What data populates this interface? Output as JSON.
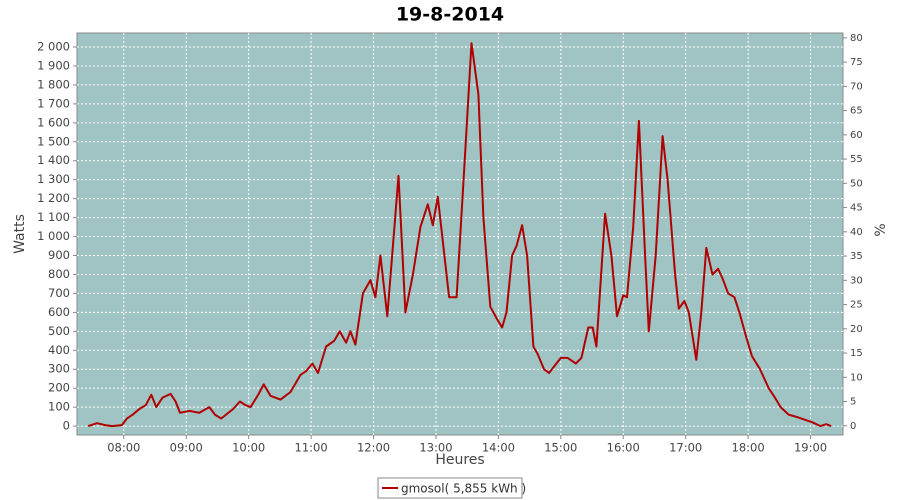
{
  "chart_data": {
    "type": "line",
    "title": "19-8-2014",
    "xlabel": "Heures",
    "ylabel": "Watts",
    "y2label": "%",
    "xlim": [
      7.25,
      19.52
    ],
    "xticks": [
      {
        "value": 8,
        "label": "08:00"
      },
      {
        "value": 9,
        "label": "09:00"
      },
      {
        "value": 10,
        "label": "10:00"
      },
      {
        "value": 11,
        "label": "11:00"
      },
      {
        "value": 12,
        "label": "12:00"
      },
      {
        "value": 13,
        "label": "13:00"
      },
      {
        "value": 14,
        "label": "14:00"
      },
      {
        "value": 15,
        "label": "15:00"
      },
      {
        "value": 16,
        "label": "16:00"
      },
      {
        "value": 17,
        "label": "17:00"
      },
      {
        "value": 18,
        "label": "18:00"
      },
      {
        "value": 19,
        "label": "19:00"
      }
    ],
    "ylim": [
      -47,
      2074
    ],
    "yticks": [
      0,
      100,
      200,
      300,
      400,
      500,
      600,
      700,
      800,
      900,
      {
        "value": 1000,
        "label": "1 000"
      },
      {
        "value": 1100,
        "label": "1 100"
      },
      {
        "value": 1200,
        "label": "1 200"
      },
      {
        "value": 1300,
        "label": "1 300"
      },
      {
        "value": 1400,
        "label": "1 400"
      },
      {
        "value": 1500,
        "label": "1 500"
      },
      {
        "value": 1600,
        "label": "1 600"
      },
      {
        "value": 1700,
        "label": "1 700"
      },
      {
        "value": 1800,
        "label": "1 800"
      },
      {
        "value": 1900,
        "label": "1 900"
      },
      {
        "value": 2000,
        "label": "2 000"
      }
    ],
    "y2lim": [
      -1.9,
      81
    ],
    "y2ticks": [
      0,
      5,
      10,
      15,
      20,
      25,
      30,
      35,
      40,
      45,
      50,
      55,
      60,
      65,
      70,
      75,
      80
    ],
    "grid": true,
    "plot_background": "#a0c4c4",
    "legend": "bottom",
    "x": [
      7.43,
      7.57,
      7.7,
      7.81,
      7.97,
      8.05,
      8.14,
      8.25,
      8.35,
      8.44,
      8.52,
      8.62,
      8.75,
      8.83,
      8.9,
      9.05,
      9.21,
      9.37,
      9.46,
      9.56,
      9.75,
      9.86,
      9.95,
      10.03,
      10.16,
      10.24,
      10.35,
      10.51,
      10.67,
      10.83,
      10.92,
      11.02,
      11.11,
      11.24,
      11.37,
      11.46,
      11.56,
      11.63,
      11.71,
      11.83,
      11.95,
      12.03,
      12.11,
      12.22,
      12.4,
      12.51,
      12.63,
      12.75,
      12.87,
      12.95,
      13.03,
      13.21,
      13.33,
      13.46,
      13.57,
      13.68,
      13.76,
      13.87,
      13.97,
      14.06,
      14.13,
      14.22,
      14.29,
      14.38,
      14.46,
      14.56,
      14.63,
      14.73,
      14.81,
      15.0,
      15.11,
      15.24,
      15.33,
      15.44,
      15.51,
      15.57,
      15.71,
      15.81,
      15.9,
      16.0,
      16.06,
      16.16,
      16.25,
      16.35,
      16.41,
      16.52,
      16.63,
      16.71,
      16.83,
      16.89,
      16.98,
      17.05,
      17.17,
      17.25,
      17.33,
      17.43,
      17.52,
      17.59,
      17.68,
      17.78,
      17.86,
      17.97,
      18.06,
      18.19,
      18.33,
      18.43,
      18.52,
      18.65,
      18.76,
      19.03,
      19.16,
      19.25,
      19.33
    ],
    "series": [
      {
        "name": "gmosol( 5,855 kWh )",
        "color": "#b00000",
        "values": [
          0,
          15,
          5,
          0,
          5,
          40,
          60,
          90,
          110,
          165,
          100,
          150,
          170,
          130,
          70,
          80,
          70,
          100,
          60,
          40,
          90,
          130,
          110,
          100,
          170,
          220,
          160,
          140,
          180,
          270,
          290,
          330,
          280,
          420,
          450,
          500,
          440,
          500,
          430,
          700,
          770,
          680,
          900,
          580,
          1320,
          600,
          800,
          1050,
          1170,
          1060,
          1210,
          680,
          680,
          1400,
          2020,
          1750,
          1100,
          630,
          570,
          520,
          600,
          900,
          950,
          1060,
          900,
          420,
          380,
          300,
          280,
          360,
          360,
          330,
          360,
          520,
          520,
          420,
          1120,
          900,
          580,
          690,
          680,
          1050,
          1610,
          900,
          500,
          900,
          1530,
          1300,
          800,
          620,
          660,
          600,
          350,
          600,
          940,
          800,
          830,
          780,
          700,
          680,
          600,
          470,
          370,
          300,
          200,
          150,
          100,
          60,
          50,
          20,
          0,
          10,
          0
        ]
      }
    ]
  }
}
